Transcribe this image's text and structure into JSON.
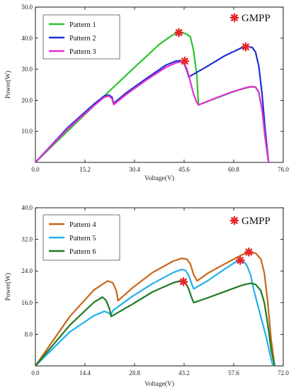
{
  "gmpp_label": "GMPP",
  "marker_color": "#e8262a",
  "chart_data": [
    {
      "type": "line",
      "title": "",
      "xlabel": "Voltage(V)",
      "ylabel": "Power(W)",
      "xlim": [
        0,
        76
      ],
      "ylim": [
        0,
        50
      ],
      "xticks": [
        "0.0",
        "15.2",
        "30.4",
        "45.6",
        "60.8",
        "76.0"
      ],
      "yticks": [
        "10.0",
        "20.0",
        "30.0",
        "40.0",
        "50.0"
      ],
      "grid": false,
      "legend_position": "top-left",
      "annotation": "GMPP",
      "series": [
        {
          "name": "Pattern 1",
          "color": "#2ec42e",
          "x": [
            0,
            10,
            20,
            30,
            38,
            42,
            44,
            46,
            47.5,
            48.5,
            49.5,
            50,
            55,
            60,
            64,
            66,
            67.5,
            68.5,
            69.5,
            70.5,
            71.5
          ],
          "y": [
            0,
            10.2,
            20.3,
            30.2,
            38.0,
            41.0,
            41.8,
            41.5,
            40.5,
            36.0,
            28.0,
            18.5,
            20.5,
            22.5,
            23.8,
            24.3,
            24.2,
            22.5,
            17.0,
            7.5,
            0
          ]
        },
        {
          "name": "Pattern 2",
          "color": "#1d2fd6",
          "x": [
            0,
            10,
            18,
            21,
            22.5,
            23.5,
            24,
            28,
            34,
            40,
            43,
            44.5,
            45.5,
            46.5,
            47,
            52,
            58,
            63,
            65,
            66.5,
            67.5,
            68.5,
            69.5,
            70.5,
            71.5
          ],
          "y": [
            0,
            11.3,
            18.8,
            21.3,
            21.7,
            21.0,
            19.0,
            22.5,
            27.0,
            31.3,
            32.6,
            32.8,
            32.0,
            29.5,
            27.5,
            30.5,
            34.3,
            36.8,
            37.3,
            37.0,
            35.5,
            31.0,
            22.0,
            10.0,
            0
          ]
        },
        {
          "name": "Pattern 3",
          "color": "#e42fd6",
          "x": [
            0,
            10,
            18,
            21,
            22.5,
            23.5,
            24,
            28,
            34,
            40,
            43,
            44.5,
            45.5,
            46.5,
            47.5,
            48.5,
            49.5,
            50,
            55,
            60,
            64,
            66,
            67.5,
            68.5,
            69.5,
            70.5,
            71.5
          ],
          "y": [
            0,
            10.9,
            18.3,
            20.9,
            21.4,
            20.5,
            18.6,
            22.0,
            26.5,
            30.6,
            32.0,
            32.4,
            32.0,
            30.0,
            26.0,
            22.0,
            19.3,
            18.5,
            20.6,
            22.6,
            23.9,
            24.4,
            24.3,
            22.6,
            17.0,
            7.5,
            0
          ]
        }
      ],
      "gmpp_points": [
        {
          "x": 44,
          "y": 41.8
        },
        {
          "x": 45.8,
          "y": 32.6
        },
        {
          "x": 64.5,
          "y": 37.2
        }
      ]
    },
    {
      "type": "line",
      "title": "",
      "xlabel": "Voltage(V)",
      "ylabel": "Power(W)",
      "xlim": [
        0,
        72
      ],
      "ylim": [
        0,
        40
      ],
      "xticks": [
        "0.0",
        "14.4",
        "28.8",
        "43.2",
        "57.6",
        "72.0"
      ],
      "yticks": [
        "8.0",
        "16.0",
        "24.0",
        "32.0",
        "40.0"
      ],
      "grid": false,
      "legend_position": "top-left",
      "annotation": "GMPP",
      "series": [
        {
          "name": "Pattern 4",
          "color": "#c8661a",
          "x": [
            0,
            10,
            17,
            21,
            22.5,
            23.5,
            24,
            28,
            34,
            40,
            42.5,
            44,
            45,
            46,
            47,
            50,
            55,
            60,
            62,
            64,
            65.5,
            66.5,
            67.5,
            68.5,
            69.5
          ],
          "y": [
            0,
            12.5,
            19.2,
            21.5,
            21.0,
            19.0,
            16.5,
            19.6,
            23.6,
            26.5,
            27.2,
            27.0,
            25.8,
            23.0,
            21.5,
            23.4,
            25.8,
            28.1,
            28.7,
            28.5,
            27.0,
            23.5,
            16.0,
            6.5,
            0
          ]
        },
        {
          "name": "Pattern 5",
          "color": "#22b0ee",
          "x": [
            0,
            10,
            17,
            20,
            21,
            22,
            22.5,
            28,
            34,
            40,
            42.5,
            43.5,
            44.5,
            45.5,
            46,
            50,
            55,
            58,
            59.5,
            60.5,
            61.5,
            62.5,
            63.5,
            65,
            67,
            68,
            69
          ],
          "y": [
            0,
            8.6,
            12.7,
            13.8,
            13.5,
            13.0,
            14.0,
            17.5,
            20.8,
            23.6,
            24.4,
            24.2,
            23.0,
            20.5,
            19.5,
            21.5,
            24.5,
            26.2,
            26.7,
            26.4,
            25.3,
            23.0,
            19.0,
            14.0,
            7.5,
            3.5,
            0
          ]
        },
        {
          "name": "Pattern 6",
          "color": "#1f7a23",
          "x": [
            0,
            10,
            17,
            19.5,
            20.5,
            21.5,
            22,
            28,
            34,
            40,
            42,
            43.5,
            44.5,
            45.5,
            46,
            50,
            55,
            60,
            62.5,
            64,
            65.5,
            66.5,
            67.5,
            68.5,
            69.5
          ],
          "y": [
            0,
            10.3,
            16.1,
            17.4,
            16.6,
            14.5,
            12.5,
            15.5,
            18.7,
            21.0,
            21.5,
            21.2,
            19.5,
            17.0,
            16.0,
            17.2,
            18.8,
            20.4,
            20.9,
            20.6,
            19.0,
            16.0,
            10.5,
            4.0,
            0
          ]
        }
      ],
      "gmpp_points": [
        {
          "x": 43,
          "y": 21.3
        },
        {
          "x": 59.5,
          "y": 26.7
        },
        {
          "x": 62,
          "y": 28.8
        }
      ]
    }
  ]
}
